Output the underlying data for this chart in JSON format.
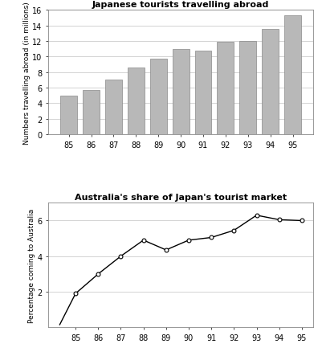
{
  "bar_years": [
    "85",
    "86",
    "87",
    "88",
    "89",
    "90",
    "91",
    "92",
    "93",
    "94",
    "95"
  ],
  "bar_values": [
    5.0,
    5.7,
    7.0,
    8.6,
    9.7,
    11.0,
    10.7,
    11.9,
    12.0,
    13.5,
    15.3
  ],
  "bar_color": "#b8b8b8",
  "bar_edge_color": "#888888",
  "bar_title": "Japanese tourists travelling abroad",
  "bar_ylabel": "Numbers travelling abroad (in millions)",
  "bar_ylim": [
    0,
    16
  ],
  "bar_yticks": [
    0,
    2,
    4,
    6,
    8,
    10,
    12,
    14,
    16
  ],
  "line_x": [
    84.3,
    85,
    86,
    87,
    88,
    89,
    90,
    91,
    92,
    93,
    94,
    95
  ],
  "line_y": [
    0.15,
    1.9,
    3.0,
    4.0,
    4.9,
    4.35,
    4.9,
    5.05,
    5.45,
    6.3,
    6.05,
    6.0
  ],
  "line_marker_x": [
    85,
    86,
    87,
    88,
    89,
    90,
    91,
    92,
    93,
    94,
    95
  ],
  "line_marker_y": [
    1.9,
    3.0,
    4.0,
    4.9,
    4.35,
    4.9,
    5.05,
    5.45,
    6.3,
    6.05,
    6.0
  ],
  "line_color": "#000000",
  "line_title": "Australia's share of Japan's tourist market",
  "line_ylabel": "Percentage coming to Australia",
  "line_ylim": [
    0,
    7
  ],
  "line_yticks": [
    2,
    4,
    6
  ],
  "line_xticks": [
    85,
    86,
    87,
    88,
    89,
    90,
    91,
    92,
    93,
    94,
    95
  ],
  "line_xlim": [
    83.8,
    95.5
  ],
  "bg_color": "#ffffff",
  "grid_color": "#cccccc",
  "title_fontsize": 8,
  "label_fontsize": 6.5,
  "tick_fontsize": 7
}
